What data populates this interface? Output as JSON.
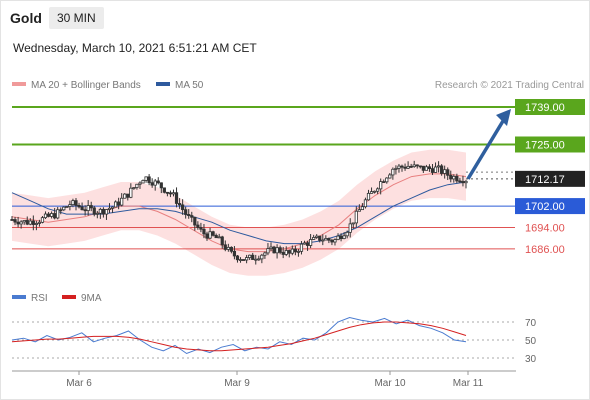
{
  "header": {
    "instrument": "Gold",
    "timeframe": "30 MIN",
    "datetime": "Wednesday, March 10, 2021 6:51:21 AM CET"
  },
  "legend": {
    "ma20_label": "MA 20 + Bollinger Bands",
    "ma50_label": "MA 50",
    "rsi_label": "RSI",
    "rsi_ma_label": "9MA"
  },
  "copyright": "Research © 2021 Trading Central",
  "colors": {
    "target": "#5aa61d",
    "support": "#2a5bd7",
    "resistance_red": "#e05252",
    "candle": "#333333",
    "bollinger_fill": "#fcd6d6",
    "ma20": "#e88080",
    "ma50": "#2e5a9e",
    "rsi": "#4a7bd0",
    "rsi_ma": "#d42020",
    "arrow": "#2f5f9e"
  },
  "chart_data": [
    {
      "type": "line",
      "title": "",
      "x_labels": [
        "Mar 6",
        "Mar 9",
        "Mar 10",
        "Mar 11"
      ],
      "ylim": [
        1674,
        1746
      ],
      "levels": [
        {
          "value": 1739.0,
          "label": "1739.00",
          "kind": "target"
        },
        {
          "value": 1725.0,
          "label": "1725.00",
          "kind": "target"
        },
        {
          "value": 1712.17,
          "label": "1712.17",
          "kind": "current"
        },
        {
          "value": 1702.0,
          "label": "1702.00",
          "kind": "support"
        },
        {
          "value": 1694.0,
          "label": "1694.00",
          "kind": "resistance"
        },
        {
          "value": 1686.0,
          "label": "1686.00",
          "kind": "resistance"
        }
      ],
      "series": [
        {
          "name": "MA 20 + Bollinger Bands",
          "values": [
            1698,
            1697,
            1696,
            1697,
            1698,
            1700,
            1702,
            1702,
            1700,
            1697,
            1693,
            1689,
            1686,
            1685,
            1685,
            1686,
            1688,
            1691,
            1695,
            1701,
            1706,
            1710,
            1713,
            1714,
            1714,
            1713
          ]
        },
        {
          "name": "MA 50",
          "values": [
            1707,
            1704,
            1701,
            1699,
            1699,
            1699,
            1700,
            1701,
            1701,
            1700,
            1698,
            1696,
            1693,
            1691,
            1689,
            1688,
            1688,
            1689,
            1691,
            1694,
            1698,
            1702,
            1705,
            1708,
            1710,
            1711
          ]
        }
      ],
      "price_path": [
        1697,
        1696,
        1697,
        1699,
        1703,
        1701,
        1700,
        1702,
        1707,
        1713,
        1710,
        1706,
        1698,
        1692,
        1690,
        1684,
        1682,
        1684,
        1686,
        1684,
        1688,
        1690,
        1689,
        1694,
        1703,
        1710,
        1716,
        1717,
        1716,
        1716,
        1713,
        1712
      ],
      "forecast_arrow": {
        "from": 1712.17,
        "to": 1739.0
      }
    },
    {
      "type": "line",
      "title": "RSI",
      "y_ticks": [
        70,
        50,
        30
      ],
      "ylim": [
        20,
        80
      ],
      "series": [
        {
          "name": "RSI",
          "values": [
            50,
            52,
            48,
            55,
            50,
            53,
            58,
            48,
            52,
            55,
            60,
            50,
            42,
            38,
            44,
            35,
            40,
            36,
            42,
            45,
            38,
            42,
            40,
            48,
            45,
            52,
            50,
            58,
            70,
            75,
            72,
            70,
            74,
            68,
            72,
            66,
            63,
            58,
            50,
            48
          ]
        },
        {
          "name": "9MA",
          "values": [
            48,
            49,
            50,
            51,
            51,
            52,
            53,
            54,
            54,
            54,
            53,
            51,
            48,
            45,
            42,
            40,
            39,
            38,
            38,
            39,
            40,
            41,
            42,
            44,
            46,
            49,
            52,
            56,
            60,
            64,
            67,
            69,
            70,
            70,
            69,
            68,
            66,
            63,
            59,
            55
          ]
        }
      ]
    }
  ]
}
